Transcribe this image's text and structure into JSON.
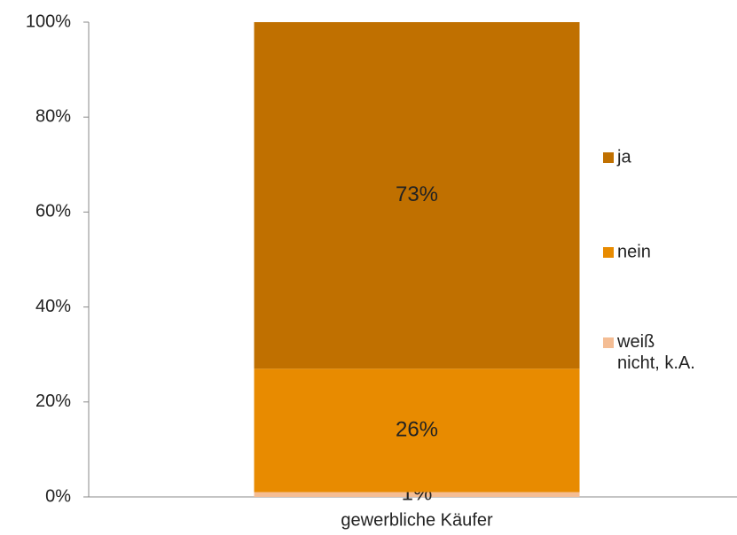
{
  "chart_data": {
    "type": "stacked_bar",
    "categories": [
      "gewerbliche Käufer"
    ],
    "series": [
      {
        "name": "weiß nicht, k.A.",
        "color": "#f4bd94",
        "values": [
          1
        ],
        "value_labels": [
          "1%"
        ]
      },
      {
        "name": "nein",
        "color": "#e88b00",
        "values": [
          26
        ],
        "value_labels": [
          "26%"
        ]
      },
      {
        "name": "ja",
        "color": "#c07000",
        "values": [
          73
        ],
        "value_labels": [
          "73%"
        ]
      }
    ],
    "ylim": [
      0,
      100
    ],
    "yticks": [
      {
        "value": 0,
        "label": "0%"
      },
      {
        "value": 20,
        "label": "20%"
      },
      {
        "value": 40,
        "label": "40%"
      },
      {
        "value": 60,
        "label": "60%"
      },
      {
        "value": 80,
        "label": "80%"
      },
      {
        "value": 100,
        "label": "100%"
      }
    ],
    "legend": "right"
  }
}
